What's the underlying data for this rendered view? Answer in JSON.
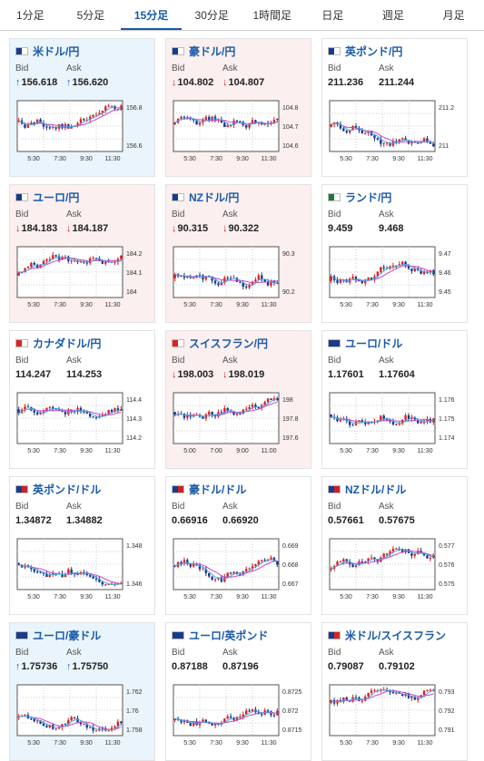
{
  "tabs": [
    {
      "label": "1分足",
      "active": false
    },
    {
      "label": "5分足",
      "active": false
    },
    {
      "label": "15分足",
      "active": true
    },
    {
      "label": "30分足",
      "active": false
    },
    {
      "label": "1時間足",
      "active": false
    },
    {
      "label": "日足",
      "active": false
    },
    {
      "label": "週足",
      "active": false
    },
    {
      "label": "月足",
      "active": false
    }
  ],
  "colors": {
    "accent": "#1a5aa8",
    "up_bg": "#eaf4fc",
    "down_bg": "#fcefef",
    "bull": "#dd2222",
    "bear": "#1a3a8c",
    "ma1": "#cc44cc",
    "ma2": "#44aadd"
  },
  "labels": {
    "bid": "Bid",
    "ask": "Ask"
  },
  "pairs": [
    {
      "name": "米ドル/円",
      "flag": [
        "#1a3a8c",
        "#ffffff"
      ],
      "trend": "up",
      "bid": "156.618",
      "ask": "156.620",
      "ticks": [
        "156.8",
        "156.6"
      ],
      "times": [
        "5:30",
        "7:30",
        "9:30",
        "11:30"
      ],
      "chart_data": {
        "type": "candlestick",
        "y_ticks": [
          156.8,
          156.6
        ],
        "x_ticks": [
          "5:30",
          "7:30",
          "9:30",
          "11:30"
        ]
      }
    },
    {
      "name": "豪ドル/円",
      "flag": [
        "#1a3a8c",
        "#ffffff"
      ],
      "trend": "down",
      "bid": "104.802",
      "ask": "104.807",
      "ticks": [
        "104.8",
        "104.7",
        "104.6"
      ],
      "times": [
        "5:30",
        "7:30",
        "9:30",
        "11:30"
      ],
      "chart_data": {
        "type": "candlestick",
        "y_ticks": [
          104.8,
          104.7,
          104.6
        ],
        "x_ticks": [
          "5:30",
          "7:30",
          "9:30",
          "11:30"
        ]
      }
    },
    {
      "name": "英ポンド/円",
      "flag": [
        "#1a3a8c",
        "#ffffff"
      ],
      "trend": "flat",
      "bid": "211.236",
      "ask": "211.244",
      "ticks": [
        "211.2",
        "211"
      ],
      "times": [
        "5:30",
        "7:30",
        "9:30",
        "11:30"
      ],
      "chart_data": {
        "type": "candlestick",
        "y_ticks": [
          211.2,
          211
        ],
        "x_ticks": [
          "5:30",
          "7:30",
          "9:30",
          "11:30"
        ]
      }
    },
    {
      "name": "ユーロ/円",
      "flag": [
        "#1a3a8c",
        "#ffffff"
      ],
      "trend": "down",
      "bid": "184.183",
      "ask": "184.187",
      "ticks": [
        "184.2",
        "184.1",
        "184"
      ],
      "times": [
        "5:30",
        "7:30",
        "9:30",
        "11:30"
      ],
      "chart_data": {
        "type": "candlestick",
        "y_ticks": [
          184.2,
          184.1,
          184
        ],
        "x_ticks": [
          "5:30",
          "7:30",
          "9:30",
          "11:30"
        ]
      }
    },
    {
      "name": "NZドル/円",
      "flag": [
        "#1a3a8c",
        "#ffffff"
      ],
      "trend": "down",
      "bid": "90.315",
      "ask": "90.322",
      "ticks": [
        "90.3",
        "90.2"
      ],
      "times": [
        "5:30",
        "7:30",
        "9:30",
        "11:30"
      ],
      "chart_data": {
        "type": "candlestick",
        "y_ticks": [
          90.3,
          90.2
        ],
        "x_ticks": [
          "5:30",
          "7:30",
          "9:30",
          "11:30"
        ]
      }
    },
    {
      "name": "ランド/円",
      "flag": [
        "#1e7a3a",
        "#ffffff"
      ],
      "trend": "flat",
      "bid": "9.459",
      "ask": "9.468",
      "ticks": [
        "9.47",
        "9.46",
        "9.45"
      ],
      "times": [
        "5:30",
        "7:30",
        "9:30",
        "11:30"
      ],
      "chart_data": {
        "type": "candlestick",
        "y_ticks": [
          9.47,
          9.46,
          9.45
        ],
        "x_ticks": [
          "5:30",
          "7:30",
          "9:30",
          "11:30"
        ]
      }
    },
    {
      "name": "カナダドル/円",
      "flag": [
        "#dd2222",
        "#ffffff"
      ],
      "trend": "flat",
      "bid": "114.247",
      "ask": "114.253",
      "ticks": [
        "114.4",
        "114.3",
        "114.2"
      ],
      "times": [
        "5:30",
        "7:30",
        "9:30",
        "11:30"
      ],
      "chart_data": {
        "type": "candlestick",
        "y_ticks": [
          114.4,
          114.3,
          114.2
        ],
        "x_ticks": [
          "5:30",
          "7:30",
          "9:30",
          "11:30"
        ]
      }
    },
    {
      "name": "スイスフラン/円",
      "flag": [
        "#dd2222",
        "#ffffff"
      ],
      "trend": "down",
      "bid": "198.003",
      "ask": "198.019",
      "ticks": [
        "198",
        "197.8",
        "197.6"
      ],
      "times": [
        "5:00",
        "7:00",
        "9:00",
        "11:00"
      ],
      "chart_data": {
        "type": "candlestick",
        "y_ticks": [
          198,
          197.8,
          197.6
        ],
        "x_ticks": [
          "5:00",
          "7:00",
          "9:00",
          "11:00"
        ]
      }
    },
    {
      "name": "ユーロ/ドル",
      "flag": [
        "#1a3a8c",
        "#1a3a8c"
      ],
      "trend": "flat",
      "bid": "1.17601",
      "ask": "1.17604",
      "ticks": [
        "1.176",
        "1.175",
        "1.174"
      ],
      "times": [
        "5:30",
        "7:30",
        "9:30",
        "11:30"
      ],
      "chart_data": {
        "type": "candlestick",
        "y_ticks": [
          1.176,
          1.175,
          1.174
        ],
        "x_ticks": [
          "5:30",
          "7:30",
          "9:30",
          "11:30"
        ]
      }
    },
    {
      "name": "英ポンド/ドル",
      "flag": [
        "#1a3a8c",
        "#cc2222"
      ],
      "trend": "flat",
      "bid": "1.34872",
      "ask": "1.34882",
      "ticks": [
        "1.348",
        "1.346"
      ],
      "times": [
        "5:30",
        "7:30",
        "9:30",
        "11:30"
      ],
      "chart_data": {
        "type": "candlestick",
        "y_ticks": [
          1.348,
          1.346
        ],
        "x_ticks": [
          "5:30",
          "7:30",
          "9:30",
          "11:30"
        ]
      }
    },
    {
      "name": "豪ドル/ドル",
      "flag": [
        "#1a3a8c",
        "#cc2222"
      ],
      "trend": "flat",
      "bid": "0.66916",
      "ask": "0.66920",
      "ticks": [
        "0.669",
        "0.668",
        "0.667"
      ],
      "times": [
        "5:30",
        "7:30",
        "9:30",
        "11:30"
      ],
      "chart_data": {
        "type": "candlestick",
        "y_ticks": [
          0.669,
          0.668,
          0.667
        ],
        "x_ticks": [
          "5:30",
          "7:30",
          "9:30",
          "11:30"
        ]
      }
    },
    {
      "name": "NZドル/ドル",
      "flag": [
        "#1a3a8c",
        "#cc2222"
      ],
      "trend": "flat",
      "bid": "0.57661",
      "ask": "0.57675",
      "ticks": [
        "0.577",
        "0.576",
        "0.575"
      ],
      "times": [
        "5:30",
        "7:30",
        "9:30",
        "11:30"
      ],
      "chart_data": {
        "type": "candlestick",
        "y_ticks": [
          0.577,
          0.576,
          0.575
        ],
        "x_ticks": [
          "5:30",
          "7:30",
          "9:30",
          "11:30"
        ]
      }
    },
    {
      "name": "ユーロ/豪ドル",
      "flag": [
        "#1a3a8c",
        "#1a3a8c"
      ],
      "trend": "up",
      "bid": "1.75736",
      "ask": "1.75750",
      "ticks": [
        "1.762",
        "1.76",
        "1.758"
      ],
      "times": [
        "5:30",
        "7:30",
        "9:30",
        "11:30"
      ],
      "chart_data": {
        "type": "candlestick",
        "y_ticks": [
          1.762,
          1.76,
          1.758
        ],
        "x_ticks": [
          "5:30",
          "7:30",
          "9:30",
          "11:30"
        ]
      }
    },
    {
      "name": "ユーロ/英ポンド",
      "flag": [
        "#1a3a8c",
        "#1a3a8c"
      ],
      "trend": "flat",
      "bid": "0.87188",
      "ask": "0.87196",
      "ticks": [
        "0.8725",
        "0.872",
        "0.8715"
      ],
      "times": [
        "5:30",
        "7:30",
        "9:30",
        "11:30"
      ],
      "chart_data": {
        "type": "candlestick",
        "y_ticks": [
          0.8725,
          0.872,
          0.8715
        ],
        "x_ticks": [
          "5:30",
          "7:30",
          "9:30",
          "11:30"
        ]
      }
    },
    {
      "name": "米ドル/スイスフラン",
      "flag": [
        "#1a3a8c",
        "#dd2222"
      ],
      "trend": "flat",
      "bid": "0.79087",
      "ask": "0.79102",
      "ticks": [
        "0.793",
        "0.792",
        "0.791"
      ],
      "times": [
        "5:30",
        "7:30",
        "9:30",
        "11:30"
      ],
      "chart_data": {
        "type": "candlestick",
        "y_ticks": [
          0.793,
          0.792,
          0.791
        ],
        "x_ticks": [
          "5:30",
          "7:30",
          "9:30",
          "11:30"
        ]
      }
    }
  ]
}
